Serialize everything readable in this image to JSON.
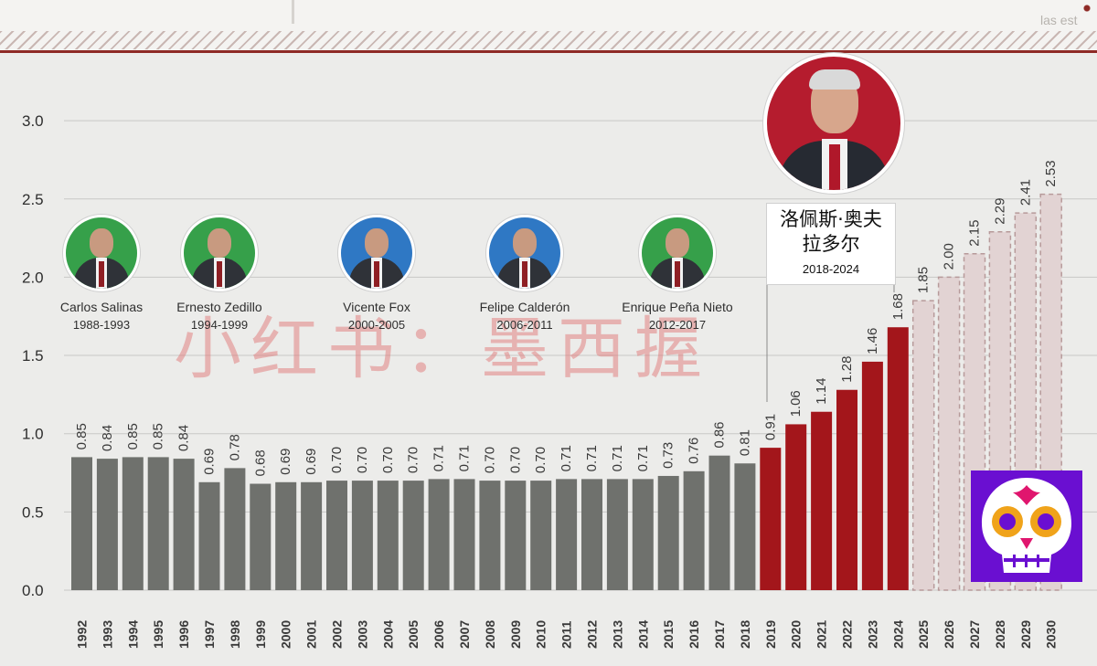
{
  "header": {
    "brand_text": "las est"
  },
  "presidents": [
    {
      "name": "Carlos Salinas",
      "years": "1988-1993",
      "suit_color": "#2f3238",
      "ring_color": "#36a04a"
    },
    {
      "name": "Ernesto Zedillo",
      "years": "1994-1999",
      "suit_color": "#2f3238",
      "ring_color": "#36a04a"
    },
    {
      "name": "Vicente Fox",
      "years": "2000-2005",
      "suit_color": "#2f3238",
      "ring_color": "#2f78c4"
    },
    {
      "name": "Felipe Calderón",
      "years": "2006-2011",
      "suit_color": "#2f3238",
      "ring_color": "#2f78c4"
    },
    {
      "name": "Enrique Peña Nieto",
      "years": "2012-2017",
      "suit_color": "#2f3238",
      "ring_color": "#36a04a"
    }
  ],
  "current_president": {
    "name": "洛佩斯·奥夫拉多尔",
    "years": "2018-2024",
    "ring_color": "#b51c2e"
  },
  "watermark": "小红书：墨西握",
  "colors": {
    "past_bar": "#6f716d",
    "current_bar": "#a3161b",
    "projected_bar": "#e2d3d3",
    "projected_border": "#b79a9a",
    "logo_bg": "#6a0fd1"
  },
  "chart_data": {
    "type": "bar",
    "title": "",
    "xlabel": "",
    "ylabel": "",
    "ylim": [
      0,
      3.0
    ],
    "yticks": [
      "0.0",
      "0.5",
      "1.0",
      "1.5",
      "2.0",
      "2.5",
      "3.0"
    ],
    "grid": true,
    "categories": [
      "1992",
      "1993",
      "1994",
      "1995",
      "1996",
      "1997",
      "1998",
      "1999",
      "2000",
      "2001",
      "2002",
      "2003",
      "2004",
      "2005",
      "2006",
      "2007",
      "2008",
      "2009",
      "2010",
      "2011",
      "2012",
      "2013",
      "2014",
      "2015",
      "2016",
      "2017",
      "2018",
      "2019",
      "2020",
      "2021",
      "2022",
      "2023",
      "2024",
      "2025",
      "2026",
      "2027",
      "2028",
      "2029",
      "2030"
    ],
    "values": [
      0.85,
      0.84,
      0.85,
      0.85,
      0.84,
      0.69,
      0.78,
      0.68,
      0.69,
      0.69,
      0.7,
      0.7,
      0.7,
      0.7,
      0.71,
      0.71,
      0.7,
      0.7,
      0.7,
      0.71,
      0.71,
      0.71,
      0.71,
      0.73,
      0.76,
      0.86,
      0.81,
      0.91,
      1.06,
      1.14,
      1.28,
      1.46,
      1.68,
      1.85,
      2.0,
      2.15,
      2.29,
      2.41,
      2.53
    ],
    "labels": [
      "0.85",
      "0.84",
      "0.85",
      "0.85",
      "0.84",
      "0.69",
      "0.78",
      "0.68",
      "0.69",
      "0.69",
      "0.70",
      "0.70",
      "0.70",
      "0.70",
      "0.71",
      "0.71",
      "0.70",
      "0.70",
      "0.70",
      "0.71",
      "0.71",
      "0.71",
      "0.71",
      "0.73",
      "0.76",
      "0.86",
      "0.81",
      "0.91",
      "1.06",
      "1.14",
      "1.28",
      "1.46",
      "1.68",
      "1.85",
      "2.00",
      "2.15",
      "2.29",
      "2.41",
      "2.53"
    ],
    "groups": [
      "past",
      "past",
      "past",
      "past",
      "past",
      "past",
      "past",
      "past",
      "past",
      "past",
      "past",
      "past",
      "past",
      "past",
      "past",
      "past",
      "past",
      "past",
      "past",
      "past",
      "past",
      "past",
      "past",
      "past",
      "past",
      "past",
      "past",
      "current",
      "current",
      "current",
      "current",
      "current",
      "current",
      "projected",
      "projected",
      "projected",
      "projected",
      "projected",
      "projected"
    ]
  }
}
